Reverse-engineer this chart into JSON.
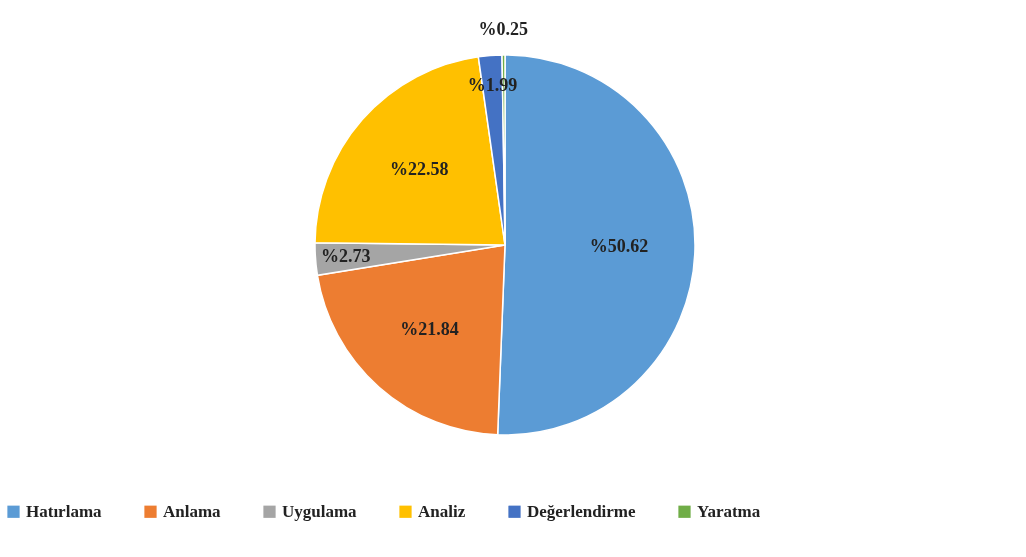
{
  "chart_data": {
    "type": "pie",
    "categories": [
      "Hatırlama",
      "Anlama",
      "Uygulama",
      "Analiz",
      "Değerlendirme",
      "Yaratma"
    ],
    "values": [
      50.62,
      21.84,
      2.73,
      22.58,
      1.99,
      0.25
    ],
    "colors": [
      "#5b9bd5",
      "#ed7d31",
      "#a5a5a5",
      "#ffc000",
      "#4472c4",
      "#70ad47"
    ],
    "value_labels": [
      "%50.62",
      "%21.84",
      "%2.73",
      "%22.58",
      "%1.99",
      "%0.25"
    ],
    "legend": "bottom"
  }
}
